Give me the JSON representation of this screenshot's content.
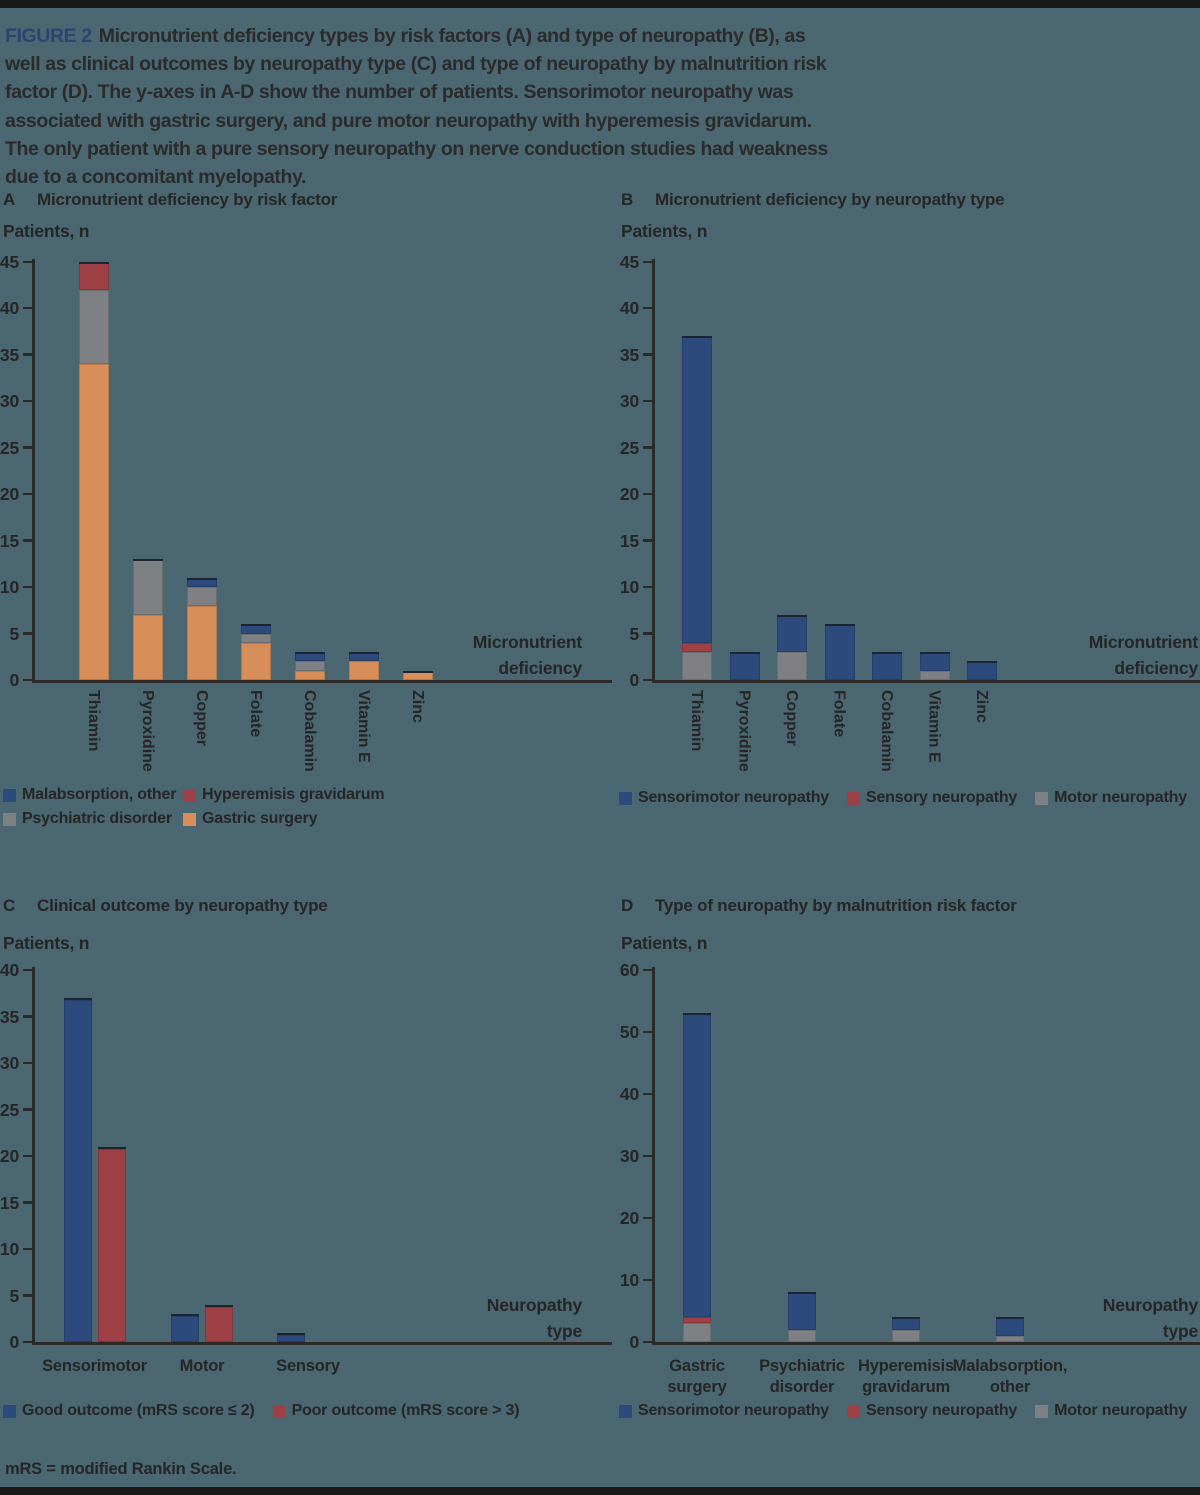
{
  "page": {
    "background": "#4b6772",
    "text_color": "#2b2b2b",
    "figure_label_color": "#2e4371",
    "axis_color": "#2b2a28",
    "border_bar_color": "#191919"
  },
  "caption": {
    "figure_label": "FIGURE 2",
    "lines": [
      "Micronutrient deficiency types by risk factors (A) and type of neuropathy (B), as",
      "well as clinical outcomes by neuropathy type (C) and type of neuropathy by malnutrition risk",
      "factor (D). The y-axes in A-D show the number of patients. Sensorimotor neuropathy was",
      "associated with gastric surgery, and pure motor neuropathy with hyperemesis gravidarum.",
      "The only patient with a pure sensory neuropathy on nerve conduction studies had weakness",
      "due to a concomitant myelopathy."
    ]
  },
  "footnote": "mRS = modified Rankin Scale.",
  "chart_data": [
    {
      "id": "a",
      "panel_letter": "A",
      "title": "Micronutrient deficiency by risk factor",
      "type": "bar",
      "stacked": true,
      "y_axis_title": "Patients, n",
      "x_axis_title_lines": [
        "Micronutrient",
        "deficiency"
      ],
      "ylim": [
        0,
        45
      ],
      "ytick_interval": 5,
      "yticks": [
        0,
        5,
        10,
        15,
        20,
        25,
        30,
        35,
        40,
        45
      ],
      "categories": [
        "Thiamin",
        "Pyroxidine",
        "Copper",
        "Folate",
        "Cobalamin",
        "Vitamin E",
        "Zinc"
      ],
      "categories_rotated": true,
      "series": [
        {
          "name": "Gastric surgery",
          "color": "#d88e58",
          "values": [
            34,
            7,
            8,
            4,
            1,
            2,
            1
          ]
        },
        {
          "name": "Psychiatric disorder",
          "color": "#7f8083",
          "values": [
            8,
            6,
            2,
            1,
            1,
            0,
            0
          ]
        },
        {
          "name": "Hyperemisis gravidarum",
          "color": "#9e4045",
          "values": [
            3,
            0,
            0,
            0,
            0,
            0,
            0
          ]
        },
        {
          "name": "Malabsorption, other",
          "color": "#2d4a7d",
          "values": [
            0,
            0,
            1,
            1,
            1,
            1,
            0
          ]
        }
      ],
      "totals": [
        45,
        13,
        11,
        6,
        3,
        3,
        1
      ],
      "legend": [
        {
          "label": "Malabsorption, other",
          "color": "#2d4a7d"
        },
        {
          "label": "Hyperemisis gravidarum",
          "color": "#9e4045"
        },
        {
          "label": "Psychiatric disorder",
          "color": "#7f8083"
        },
        {
          "label": "Gastric surgery",
          "color": "#d88e58"
        }
      ]
    },
    {
      "id": "b",
      "panel_letter": "B",
      "title": "Micronutrient deficiency by neuropathy type",
      "type": "bar",
      "stacked": true,
      "y_axis_title": "Patients, n",
      "x_axis_title_lines": [
        "Micronutrient",
        "deficiency"
      ],
      "ylim": [
        0,
        45
      ],
      "ytick_interval": 5,
      "yticks": [
        0,
        5,
        10,
        15,
        20,
        25,
        30,
        35,
        40,
        45
      ],
      "categories": [
        "Thiamin",
        "Pyroxidine",
        "Copper",
        "Folate",
        "Cobalamin",
        "Vitamin E",
        "Zinc"
      ],
      "categories_rotated": true,
      "series": [
        {
          "name": "Motor neuropathy",
          "color": "#7f8083",
          "values": [
            3,
            0,
            3,
            0,
            0,
            1,
            0
          ]
        },
        {
          "name": "Sensory neuropathy",
          "color": "#9e4045",
          "values": [
            1,
            0,
            0,
            0,
            0,
            0,
            0
          ]
        },
        {
          "name": "Sensorimotor neuropathy",
          "color": "#2d4a7d",
          "values": [
            33,
            3,
            4,
            6,
            3,
            2,
            2
          ]
        }
      ],
      "totals": [
        37,
        3,
        7,
        6,
        3,
        3,
        2
      ],
      "legend": [
        {
          "label": "Sensorimotor neuropathy",
          "color": "#2d4a7d"
        },
        {
          "label": "Sensory neuropathy",
          "color": "#9e4045"
        },
        {
          "label": "Motor neuropathy",
          "color": "#7f8083"
        }
      ]
    },
    {
      "id": "c",
      "panel_letter": "C",
      "title": "Clinical outcome by neuropathy type",
      "type": "bar",
      "stacked": false,
      "grouped": true,
      "y_axis_title": "Patients, n",
      "x_axis_title_lines": [
        "Neuropathy",
        "type"
      ],
      "ylim": [
        0,
        40
      ],
      "ytick_interval": 5,
      "yticks": [
        0,
        5,
        10,
        15,
        20,
        25,
        30,
        35,
        40
      ],
      "categories": [
        "Sensorimotor",
        "Motor",
        "Sensory"
      ],
      "categories_rotated": false,
      "series": [
        {
          "name": "Good outcome (mRS score ≤ 2)",
          "color": "#2d4a7d",
          "values": [
            37,
            3,
            1
          ]
        },
        {
          "name": "Poor outcome (mRS score > 3)",
          "color": "#9e4045",
          "values": [
            21,
            4,
            0
          ]
        }
      ],
      "legend": [
        {
          "label": "Good outcome (mRS score ≤ 2)",
          "color": "#2d4a7d"
        },
        {
          "label": "Poor outcome (mRS score > 3)",
          "color": "#9e4045"
        }
      ]
    },
    {
      "id": "d",
      "panel_letter": "D",
      "title": "Type of neuropathy by malnutrition risk factor",
      "type": "bar",
      "stacked": true,
      "y_axis_title": "Patients, n",
      "x_axis_title_lines": [
        "Neuropathy",
        "type"
      ],
      "ylim": [
        0,
        60
      ],
      "ytick_interval": 10,
      "yticks": [
        0,
        10,
        20,
        30,
        40,
        50,
        60
      ],
      "categories": [
        "Gastric\nsurgery",
        "Psychiatric\ndisorder",
        "Hyperemisis\ngravidarum",
        "Malabsorption,\nother"
      ],
      "categories_rotated": false,
      "series": [
        {
          "name": "Motor neuropathy",
          "color": "#7f8083",
          "values": [
            3,
            2,
            2,
            1
          ]
        },
        {
          "name": "Sensory neuropathy",
          "color": "#9e4045",
          "values": [
            1,
            0,
            0,
            0
          ]
        },
        {
          "name": "Sensorimotor neuropathy",
          "color": "#2d4a7d",
          "values": [
            49,
            6,
            2,
            3
          ]
        }
      ],
      "totals": [
        53,
        8,
        4,
        4
      ],
      "legend": [
        {
          "label": "Sensorimotor neuropathy",
          "color": "#2d4a7d"
        },
        {
          "label": "Sensory neuropathy",
          "color": "#9e4045"
        },
        {
          "label": "Motor neuropathy",
          "color": "#7f8083"
        }
      ]
    }
  ]
}
